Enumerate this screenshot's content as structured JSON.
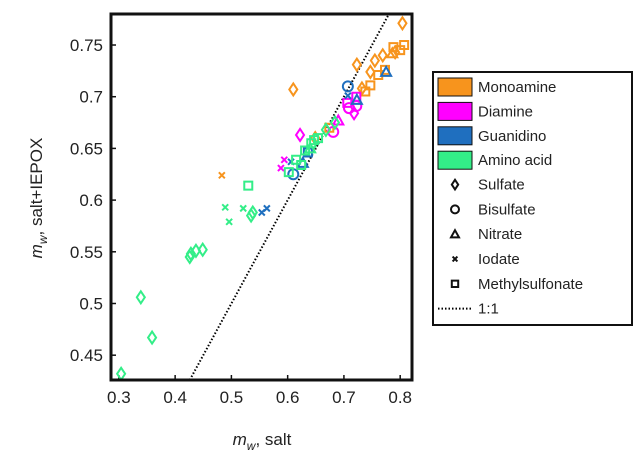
{
  "chart_data": {
    "type": "scatter",
    "x_label": {
      "symbol": "m",
      "subscript": "w",
      "text": ", salt"
    },
    "y_label": {
      "symbol": "m",
      "subscript": "w",
      "text": ", salt+IEPOX"
    },
    "xlim": [
      0.286,
      0.821
    ],
    "ylim": [
      0.426,
      0.78
    ],
    "xticks": [
      0.3,
      0.4,
      0.5,
      0.6,
      0.7,
      0.8
    ],
    "yticks": [
      0.45,
      0.5,
      0.55,
      0.6,
      0.65,
      0.7,
      0.75
    ],
    "series": [
      {
        "name": "Monoamine",
        "color": "#f7941d",
        "x": [
          0.483,
          0.61,
          0.649,
          0.674,
          0.723,
          0.738,
          0.747,
          0.761,
          0.773,
          0.755,
          0.769,
          0.791,
          0.804,
          0.788,
          0.8,
          0.807,
          0.786,
          0.747,
          0.732
        ],
        "y": [
          0.624,
          0.707,
          0.66,
          0.67,
          0.731,
          0.705,
          0.711,
          0.721,
          0.726,
          0.735,
          0.74,
          0.743,
          0.771,
          0.748,
          0.745,
          0.75,
          0.742,
          0.724,
          0.708
        ],
        "markers": [
          "x",
          "diamond",
          "diamond",
          "square",
          "diamond",
          "square",
          "square",
          "square",
          "square",
          "diamond",
          "diamond",
          "diamond",
          "diamond",
          "square",
          "square",
          "square",
          "triangle",
          "diamond",
          "diamond"
        ]
      },
      {
        "name": "Diamine",
        "color": "#ff00ff",
        "x": [
          0.588,
          0.594,
          0.622,
          0.681,
          0.706,
          0.722,
          0.709,
          0.722,
          0.69,
          0.718
        ],
        "y": [
          0.631,
          0.639,
          0.663,
          0.666,
          0.694,
          0.7,
          0.689,
          0.691,
          0.677,
          0.684
        ],
        "markers": [
          "x",
          "x",
          "diamond",
          "circle",
          "square",
          "square",
          "circle",
          "circle",
          "triangle",
          "diamond"
        ]
      },
      {
        "name": "Guanidino",
        "color": "#1f6fbf",
        "x": [
          0.554,
          0.563,
          0.606,
          0.61,
          0.627,
          0.636,
          0.707,
          0.723,
          0.775,
          0.707
        ],
        "y": [
          0.588,
          0.592,
          0.637,
          0.625,
          0.636,
          0.646,
          0.71,
          0.697,
          0.724,
          0.701
        ],
        "markers": [
          "x",
          "x",
          "x",
          "circle",
          "triangle",
          "square",
          "circle",
          "triangle",
          "triangle",
          "x"
        ]
      },
      {
        "name": "Amino acid",
        "color": "#33ee88",
        "x": [
          0.304,
          0.339,
          0.359,
          0.428,
          0.437,
          0.449,
          0.426,
          0.535,
          0.538,
          0.53,
          0.602,
          0.615,
          0.631,
          0.642,
          0.654,
          0.668,
          0.684,
          0.647,
          0.624,
          0.64,
          0.489,
          0.521,
          0.496
        ],
        "y": [
          0.432,
          0.506,
          0.467,
          0.548,
          0.551,
          0.552,
          0.545,
          0.585,
          0.588,
          0.614,
          0.627,
          0.639,
          0.648,
          0.655,
          0.66,
          0.668,
          0.675,
          0.658,
          0.634,
          0.65,
          0.593,
          0.592,
          0.579
        ],
        "markers": [
          "diamond",
          "diamond",
          "diamond",
          "diamond",
          "diamond",
          "diamond",
          "diamond",
          "diamond",
          "diamond",
          "square",
          "square",
          "square",
          "square",
          "square",
          "square",
          "diamond",
          "diamond",
          "square",
          "square",
          "triangle",
          "x",
          "x",
          "x"
        ]
      }
    ],
    "marker_legend": [
      {
        "name": "Sulfate",
        "marker": "diamond"
      },
      {
        "name": "Bisulfate",
        "marker": "circle"
      },
      {
        "name": "Nitrate",
        "marker": "triangle"
      },
      {
        "name": "Iodate",
        "marker": "x"
      },
      {
        "name": "Methylsulfonate",
        "marker": "square"
      }
    ],
    "reference_line": {
      "label": "1:1",
      "color": "#000000",
      "style": "dotted"
    }
  }
}
